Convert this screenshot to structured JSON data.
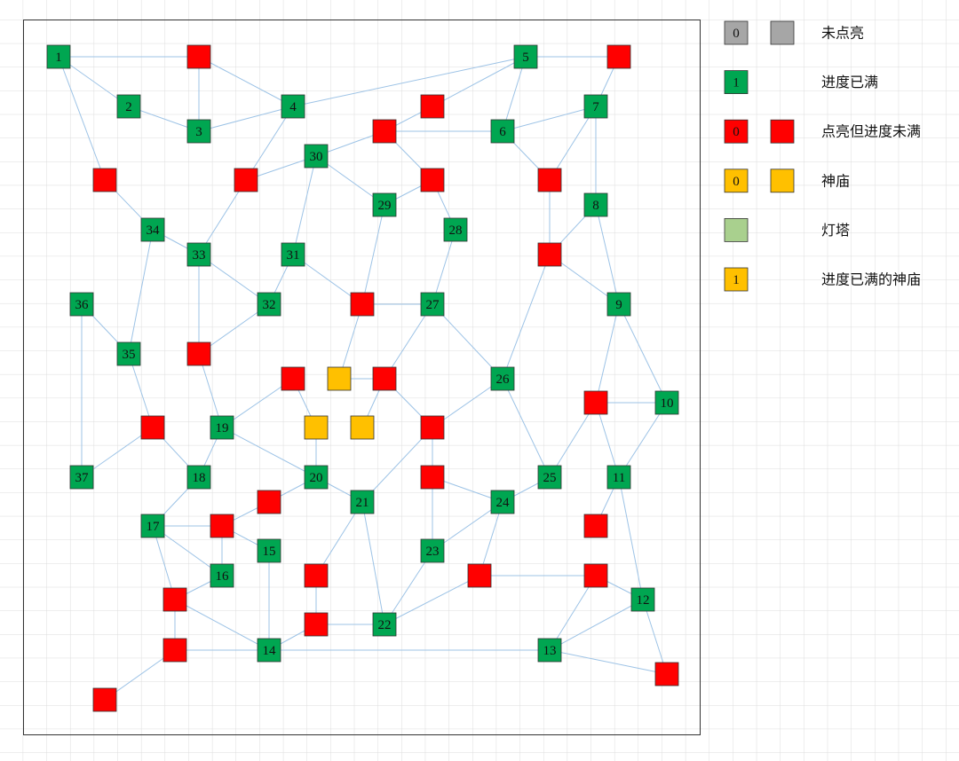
{
  "node_labels": [
    "1",
    "2",
    "3",
    "4",
    "5",
    "6",
    "7",
    "8",
    "9",
    "10",
    "11",
    "12",
    "13",
    "14",
    "15",
    "16",
    "17",
    "18",
    "19",
    "20",
    "21",
    "22",
    "23",
    "24",
    "25",
    "26",
    "27",
    "28",
    "29",
    "30",
    "31",
    "32",
    "33",
    "34",
    "35",
    "36",
    "37"
  ],
  "legend": [
    {
      "marker": "0",
      "text": "未点亮"
    },
    {
      "marker": "1",
      "text": "进度已满"
    },
    {
      "marker": "0",
      "text": "点亮但进度未满"
    },
    {
      "marker": "0",
      "text": "神庙"
    },
    {
      "text": "灯塔"
    },
    {
      "marker": "1",
      "text": "进度已满的神庙"
    }
  ]
}
